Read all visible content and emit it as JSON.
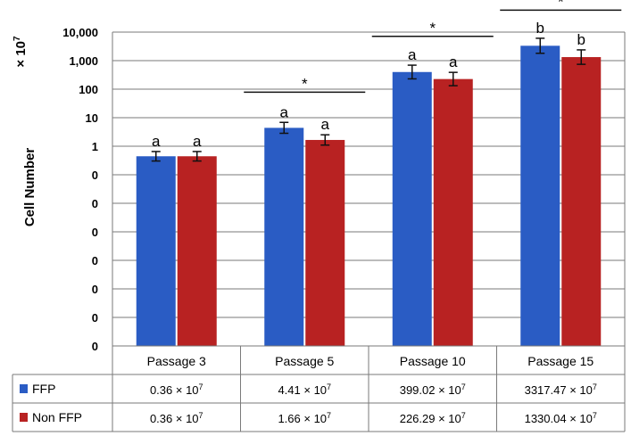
{
  "chart_data": {
    "type": "bar",
    "ylabel": "Cell Number",
    "unit_label": "× 10",
    "unit_exponent": "7",
    "y_scale": "log",
    "y_ticks": [
      "10,000",
      "1,000",
      "100",
      "10",
      "1",
      "0",
      "0",
      "0",
      "0",
      "0",
      "0",
      "0"
    ],
    "categories": [
      "Passage 3",
      "Passage 5",
      "Passage 10",
      "Passage 15"
    ],
    "series": [
      {
        "name": "FFP",
        "color": "#2a5cc4",
        "values": [
          0.36,
          4.41,
          399.02,
          3317.47
        ],
        "labels": [
          "0.36 × 10",
          "4.41 × 10",
          "399.02 × 10",
          "3317.47 × 10"
        ],
        "letters": [
          "a",
          "a",
          "a",
          "b"
        ]
      },
      {
        "name": "Non FFP",
        "color": "#b82222",
        "values": [
          0.36,
          1.66,
          226.29,
          1330.04
        ],
        "labels": [
          "0.36 × 10",
          "1.66 × 10",
          "226.29 × 10",
          "1330.04 × 10"
        ],
        "letters": [
          "a",
          "a",
          "a",
          "b"
        ]
      }
    ],
    "label_exponent": "7",
    "significance": [
      "",
      "*",
      "*",
      "*"
    ],
    "grid": true,
    "legend": "table"
  }
}
